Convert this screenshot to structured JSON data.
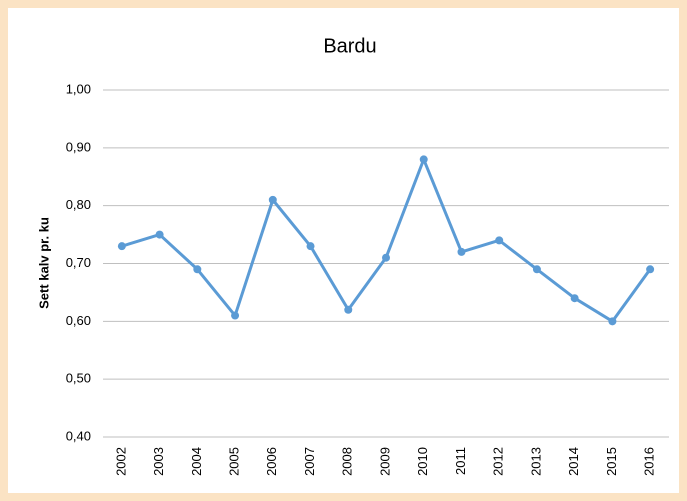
{
  "chart_data": {
    "type": "line",
    "title": "Bardu",
    "y_label": "Sett kalv pr. ku",
    "categories": [
      "2002",
      "2003",
      "2004",
      "2005",
      "2006",
      "2007",
      "2008",
      "2009",
      "2010",
      "2011",
      "2012",
      "2013",
      "2014",
      "2015",
      "2016"
    ],
    "series": [
      {
        "name": "Bardu",
        "color": "#5b9bd5",
        "values": [
          0.73,
          0.75,
          0.69,
          0.61,
          0.81,
          0.73,
          0.62,
          0.71,
          0.88,
          0.72,
          0.74,
          0.69,
          0.64,
          0.6,
          0.69
        ]
      }
    ],
    "ylim": [
      0.4,
      1.0
    ],
    "yticks": [
      {
        "value": 0.4,
        "label": "0,40"
      },
      {
        "value": 0.5,
        "label": "0,50"
      },
      {
        "value": 0.6,
        "label": "0,60"
      },
      {
        "value": 0.7,
        "label": "0,70"
      },
      {
        "value": 0.8,
        "label": "0,80"
      },
      {
        "value": 0.9,
        "label": "0,90"
      },
      {
        "value": 1.0,
        "label": "1,00"
      }
    ],
    "grid": true
  }
}
